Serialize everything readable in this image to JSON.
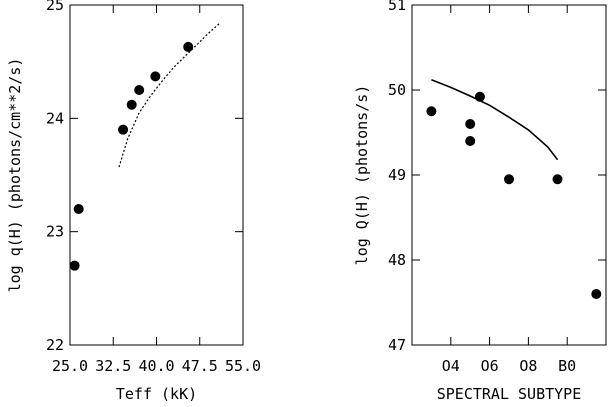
{
  "chart_data": [
    {
      "type": "scatter",
      "panel": "left",
      "xlabel": "Teff (kK)",
      "ylabel": "log q(H)  (photons/cm**2/s)",
      "xlim": [
        25.0,
        55.0
      ],
      "ylim": [
        22.0,
        25.0
      ],
      "x_ticks": [
        25.0,
        32.5,
        40.0,
        47.5,
        55.0
      ],
      "x_tick_labels": [
        "25.0",
        "32.5",
        "40.0",
        "47.5",
        "55.0"
      ],
      "y_ticks": [
        22,
        23,
        24,
        25
      ],
      "y_tick_labels": [
        "22",
        "23",
        "24",
        "25"
      ],
      "series": [
        {
          "kind": "points",
          "x": [
            25.8,
            26.5,
            34.2,
            35.7,
            37.0,
            39.8,
            45.5
          ],
          "y": [
            22.7,
            23.2,
            23.9,
            24.12,
            24.25,
            24.37,
            24.63
          ]
        },
        {
          "kind": "curve",
          "style": "dotted",
          "x": [
            33.5,
            35.0,
            37.0,
            39.0,
            41.0,
            43.0,
            45.0,
            47.0,
            49.0,
            51.0
          ],
          "y": [
            23.57,
            23.82,
            24.05,
            24.2,
            24.33,
            24.45,
            24.55,
            24.65,
            24.75,
            24.84
          ]
        }
      ]
    },
    {
      "type": "scatter",
      "panel": "right",
      "xlabel": "SPECTRAL SUBTYPE",
      "ylabel": "log Q(H)  (photons/s)",
      "xlim": [
        2.0,
        12.0
      ],
      "ylim": [
        47.0,
        51.0
      ],
      "x_ticks": [
        4,
        6,
        8,
        10
      ],
      "x_tick_labels": [
        "O4",
        "O6",
        "O8",
        "B0"
      ],
      "y_ticks": [
        47,
        48,
        49,
        50,
        51
      ],
      "y_tick_labels": [
        "47",
        "48",
        "49",
        "50",
        "51"
      ],
      "series": [
        {
          "kind": "points",
          "x": [
            3.0,
            5.0,
            5.0,
            5.5,
            7.0,
            9.5,
            11.5
          ],
          "y": [
            49.75,
            49.6,
            49.4,
            49.92,
            48.95,
            48.95,
            47.6
          ]
        },
        {
          "kind": "curve",
          "style": "solid",
          "x": [
            3.0,
            4.0,
            5.0,
            6.0,
            7.0,
            8.0,
            9.0,
            9.5
          ],
          "y": [
            50.12,
            50.03,
            49.93,
            49.82,
            49.68,
            49.53,
            49.33,
            49.18
          ]
        }
      ]
    }
  ]
}
